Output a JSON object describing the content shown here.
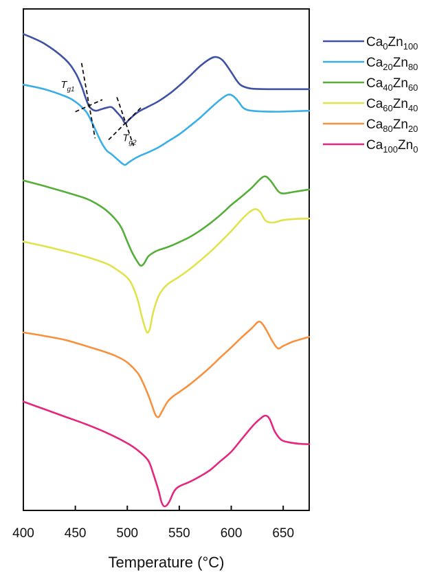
{
  "chart_data": {
    "type": "line",
    "xlabel": "Temperature (°C)",
    "ylabel": "",
    "xlim": [
      400,
      675
    ],
    "ylim": [
      0,
      100
    ],
    "xticks": [
      400,
      450,
      500,
      550,
      600,
      650
    ],
    "xtick_labels": [
      "400",
      "450",
      "500",
      "550",
      "600",
      "650"
    ],
    "grid": false,
    "legend_position": "outside-right",
    "y_axis_values": "arbitrary units (unlabeled, curves vertically offset)",
    "series": [
      {
        "name": "Ca0Zn100",
        "legend": {
          "base1": "Ca",
          "sub1": "0",
          "base2": "Zn",
          "sub2": "100"
        },
        "color": "#3f51a3",
        "x": [
          400,
          420,
          440,
          450,
          456,
          460,
          463,
          466,
          470,
          475,
          480,
          485,
          490,
          495,
          498,
          502,
          510,
          520,
          530,
          540,
          550,
          560,
          570,
          580,
          586,
          592,
          600,
          605,
          610,
          620,
          640,
          660,
          675
        ],
        "y": [
          95.0,
          93.1,
          90.0,
          87.3,
          84.6,
          82.2,
          80.7,
          80.0,
          79.7,
          80.0,
          80.3,
          80.4,
          79.4,
          78.2,
          77.2,
          78.0,
          79.4,
          80.5,
          81.6,
          83.0,
          84.7,
          86.6,
          88.6,
          90.1,
          90.4,
          89.7,
          87.4,
          85.8,
          84.7,
          84.1,
          84.0,
          84.0,
          84.0
        ]
      },
      {
        "name": "Ca20Zn80",
        "legend": {
          "base1": "Ca",
          "sub1": "20",
          "base2": "Zn",
          "sub2": "80"
        },
        "color": "#39aee8",
        "x": [
          400,
          420,
          440,
          450,
          460,
          465,
          470,
          475,
          480,
          485,
          490,
          495,
          498,
          502,
          510,
          520,
          530,
          540,
          550,
          560,
          570,
          580,
          590,
          597,
          602,
          607,
          612,
          620,
          640,
          660,
          675
        ],
        "y": [
          84.9,
          84.0,
          82.6,
          81.5,
          79.6,
          77.8,
          75.6,
          73.4,
          71.8,
          71.0,
          70.1,
          69.2,
          68.9,
          69.5,
          70.5,
          71.4,
          72.4,
          73.7,
          75.0,
          76.6,
          78.3,
          80.2,
          82.0,
          82.9,
          82.6,
          81.5,
          80.2,
          79.7,
          79.5,
          79.6,
          79.7
        ]
      },
      {
        "name": "Ca40Zn60",
        "legend": {
          "base1": "Ca",
          "sub1": "40",
          "base2": "Zn",
          "sub2": "60"
        },
        "color": "#55ae3a",
        "x": [
          400,
          420,
          440,
          460,
          470,
          480,
          490,
          495,
          500,
          505,
          510,
          513,
          516,
          520,
          525,
          530,
          540,
          550,
          560,
          570,
          580,
          590,
          600,
          610,
          620,
          628,
          633,
          638,
          645,
          650,
          660,
          675
        ],
        "y": [
          65.8,
          64.7,
          63.5,
          62.2,
          61.2,
          59.8,
          57.7,
          56.1,
          53.6,
          51.3,
          49.5,
          48.8,
          49.2,
          50.6,
          51.4,
          51.9,
          52.6,
          53.5,
          54.5,
          55.8,
          57.3,
          59.0,
          60.9,
          62.6,
          64.4,
          66.1,
          66.6,
          65.7,
          63.7,
          63.2,
          63.5,
          64.0
        ]
      },
      {
        "name": "Ca60Zn40",
        "legend": {
          "base1": "Ca",
          "sub1": "60",
          "base2": "Zn",
          "sub2": "40"
        },
        "color": "#e0e34a",
        "x": [
          400,
          420,
          440,
          460,
          480,
          490,
          500,
          505,
          510,
          514,
          518,
          520,
          522,
          525,
          530,
          535,
          540,
          550,
          560,
          570,
          580,
          590,
          600,
          610,
          617,
          623,
          628,
          633,
          640,
          650,
          660,
          675
        ],
        "y": [
          53.6,
          52.7,
          51.7,
          50.6,
          49.2,
          48.0,
          46.4,
          44.8,
          42.0,
          38.6,
          35.9,
          35.5,
          36.5,
          39.6,
          42.7,
          44.3,
          45.3,
          46.6,
          48.1,
          49.8,
          51.6,
          53.6,
          55.7,
          58.0,
          59.4,
          60.1,
          59.5,
          57.8,
          57.4,
          57.9,
          58.1,
          58.2
        ]
      },
      {
        "name": "Ca80Zn20",
        "legend": {
          "base1": "Ca",
          "sub1": "80",
          "base2": "Zn",
          "sub2": "20"
        },
        "color": "#f7913e",
        "x": [
          400,
          420,
          440,
          460,
          480,
          490,
          500,
          510,
          515,
          520,
          524,
          527,
          530,
          533,
          537,
          540,
          545,
          550,
          560,
          570,
          580,
          590,
          600,
          610,
          620,
          626,
          630,
          635,
          640,
          645,
          650,
          660,
          675
        ],
        "y": [
          35.5,
          34.8,
          34.0,
          32.8,
          31.5,
          30.7,
          29.5,
          27.4,
          25.5,
          23.1,
          20.8,
          19.1,
          18.6,
          19.6,
          21.1,
          22.0,
          22.9,
          23.6,
          25.1,
          26.8,
          28.6,
          30.6,
          32.5,
          34.5,
          36.4,
          37.6,
          37.2,
          35.5,
          33.6,
          32.3,
          32.8,
          33.7,
          34.6
        ]
      },
      {
        "name": "Ca100Zn0",
        "legend": {
          "base1": "Ca",
          "sub1": "100",
          "base2": "Zn",
          "sub2": "0"
        },
        "color": "#e5267d",
        "x": [
          400,
          420,
          440,
          460,
          480,
          500,
          510,
          520,
          525,
          530,
          533,
          536,
          540,
          545,
          550,
          560,
          570,
          580,
          590,
          600,
          610,
          620,
          628,
          633,
          637,
          642,
          648,
          655,
          665,
          675
        ],
        "y": [
          21.7,
          20.2,
          18.7,
          17.2,
          15.5,
          13.4,
          12.0,
          10.0,
          7.3,
          4.0,
          1.6,
          0.8,
          1.6,
          3.8,
          4.8,
          5.7,
          6.8,
          8.1,
          9.9,
          11.7,
          14.2,
          16.7,
          18.3,
          18.9,
          18.2,
          15.7,
          14.1,
          13.6,
          13.3,
          13.2
        ]
      }
    ],
    "annotations": [
      {
        "label": "Tg1",
        "base": "T",
        "sub": "g1",
        "series": "Ca0Zn100",
        "x": 463
      },
      {
        "label": "Tg2",
        "base": "T",
        "sub": "g2",
        "series": "Ca0Zn100",
        "x": 498
      }
    ]
  }
}
